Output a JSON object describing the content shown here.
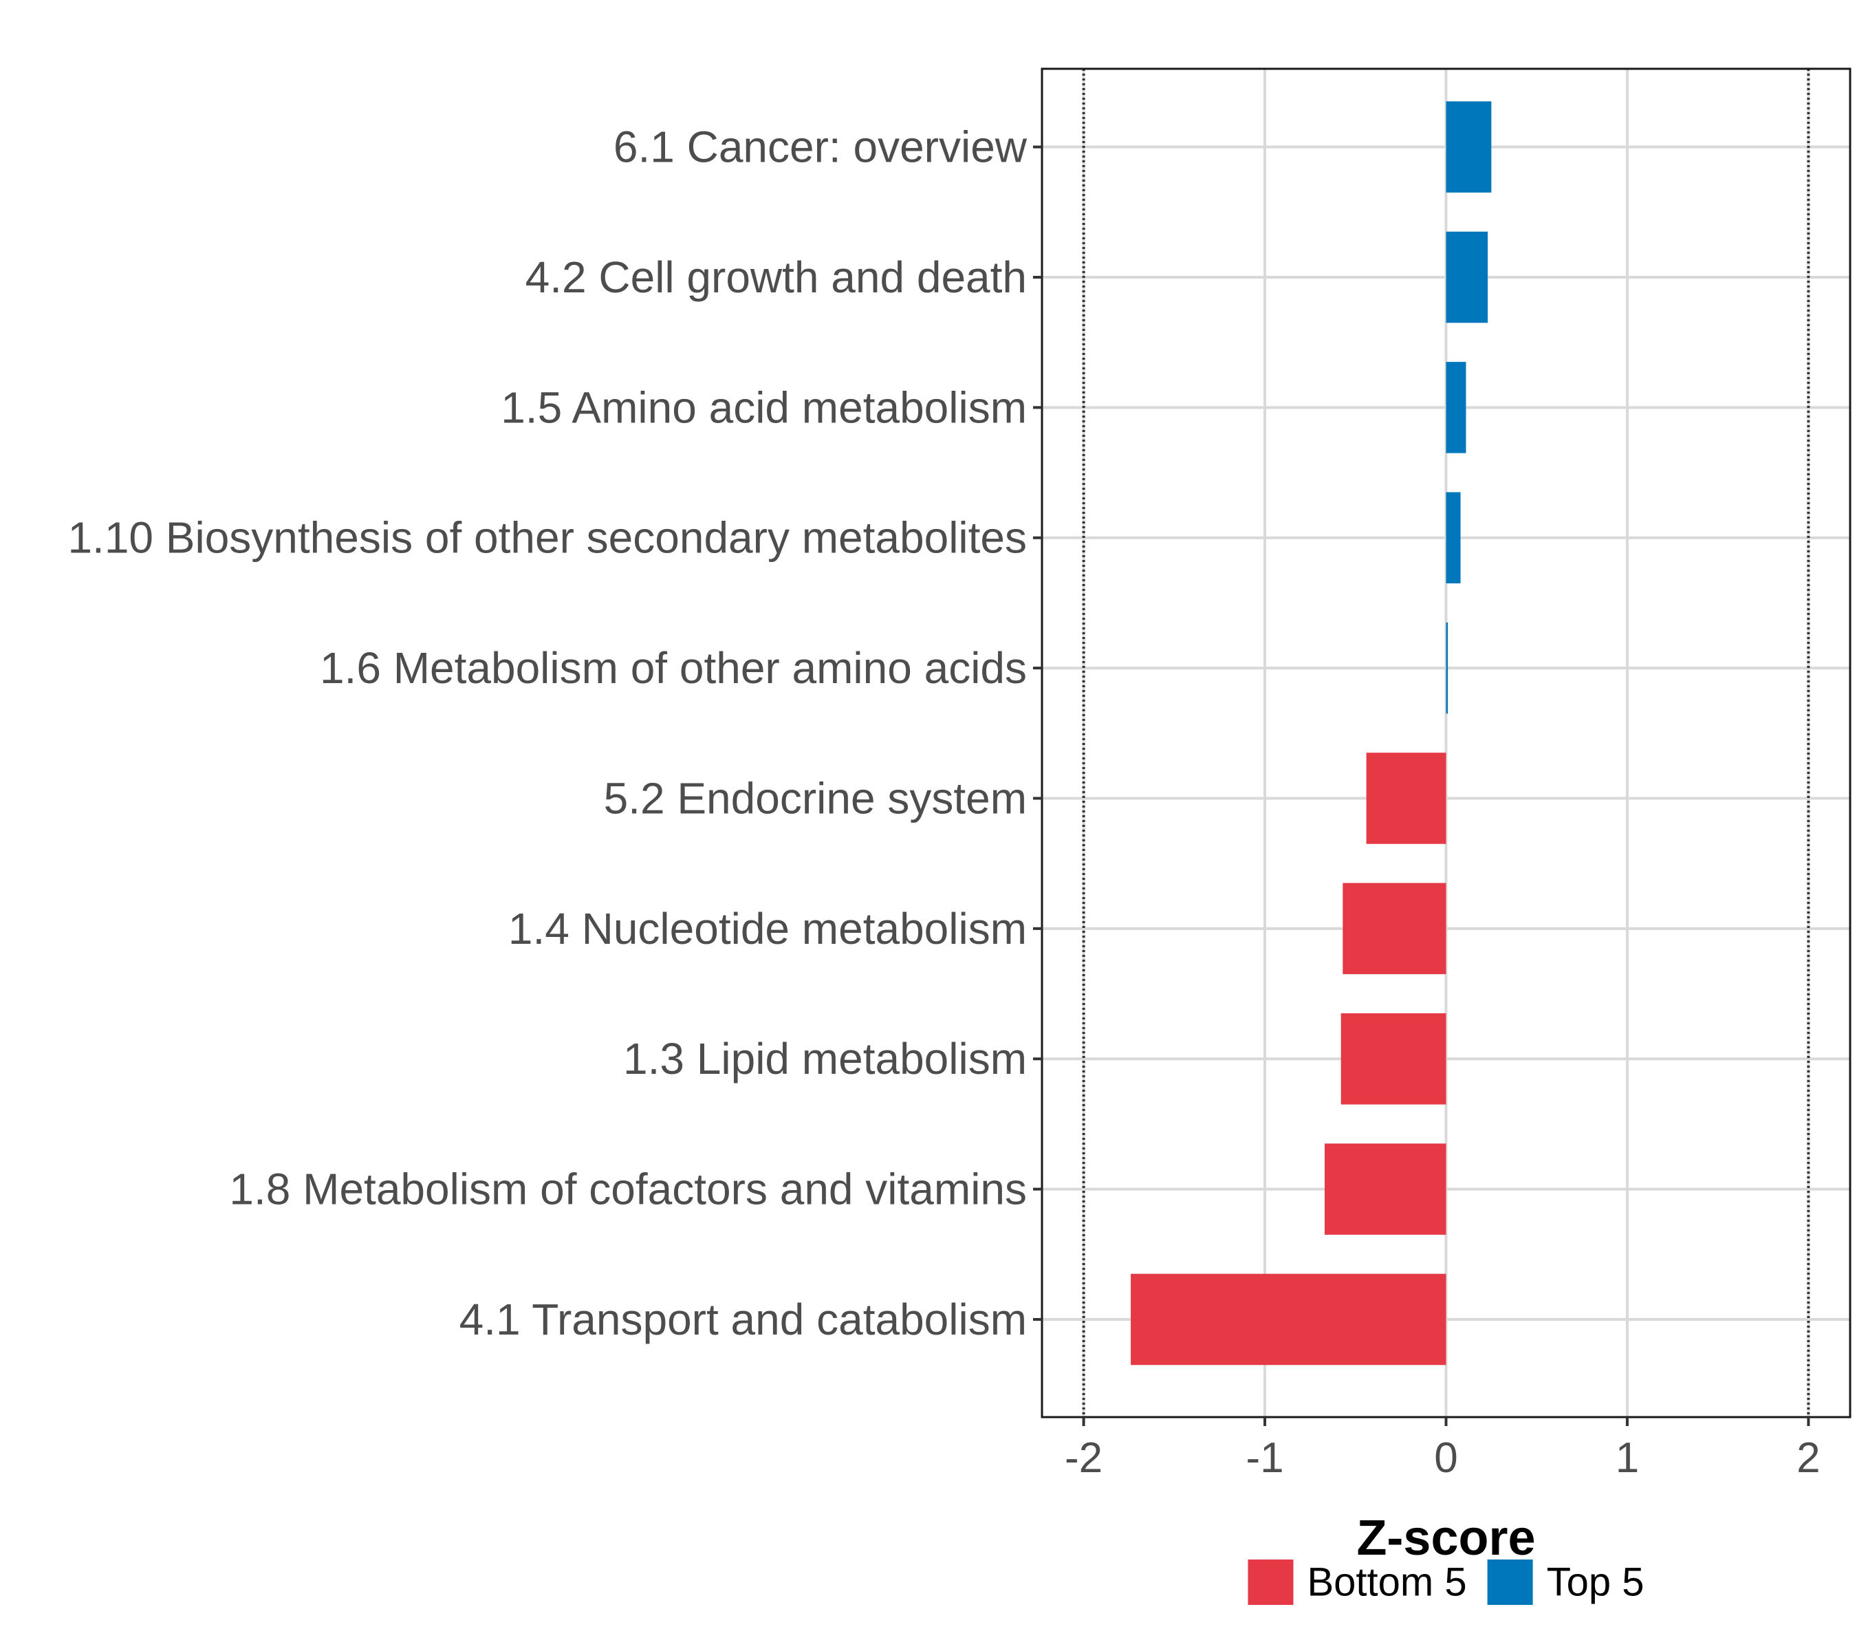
{
  "chart_data": {
    "type": "bar",
    "orientation": "horizontal",
    "title": "",
    "xlabel": "Z-score",
    "ylabel": "",
    "xlim": [
      -2.23,
      2.23
    ],
    "xticks": [
      -2,
      -1,
      0,
      1,
      2
    ],
    "xtick_labels": [
      "-2",
      "-1",
      "0",
      "1",
      "2"
    ],
    "reference_lines": [
      -2,
      2
    ],
    "grid": true,
    "categories": [
      "6.1 Cancer: overview",
      "4.2 Cell growth and death",
      "1.5 Amino acid metabolism",
      "1.10 Biosynthesis of other secondary metabolites",
      "1.6 Metabolism of other amino acids",
      "5.2 Endocrine system",
      "1.4 Nucleotide metabolism",
      "1.3 Lipid metabolism",
      "1.8 Metabolism of cofactors and vitamins",
      "4.1 Transport and catabolism"
    ],
    "values": [
      0.25,
      0.23,
      0.11,
      0.08,
      0.01,
      -0.44,
      -0.57,
      -0.58,
      -0.67,
      -1.74
    ],
    "groups": [
      "Top 5",
      "Top 5",
      "Top 5",
      "Top 5",
      "Top 5",
      "Bottom 5",
      "Bottom 5",
      "Bottom 5",
      "Bottom 5",
      "Bottom 5"
    ],
    "legend": {
      "position": "bottom",
      "entries": [
        {
          "name": "Bottom 5",
          "color": "#E63946"
        },
        {
          "name": "Top 5",
          "color": "#0077BB"
        }
      ]
    }
  }
}
